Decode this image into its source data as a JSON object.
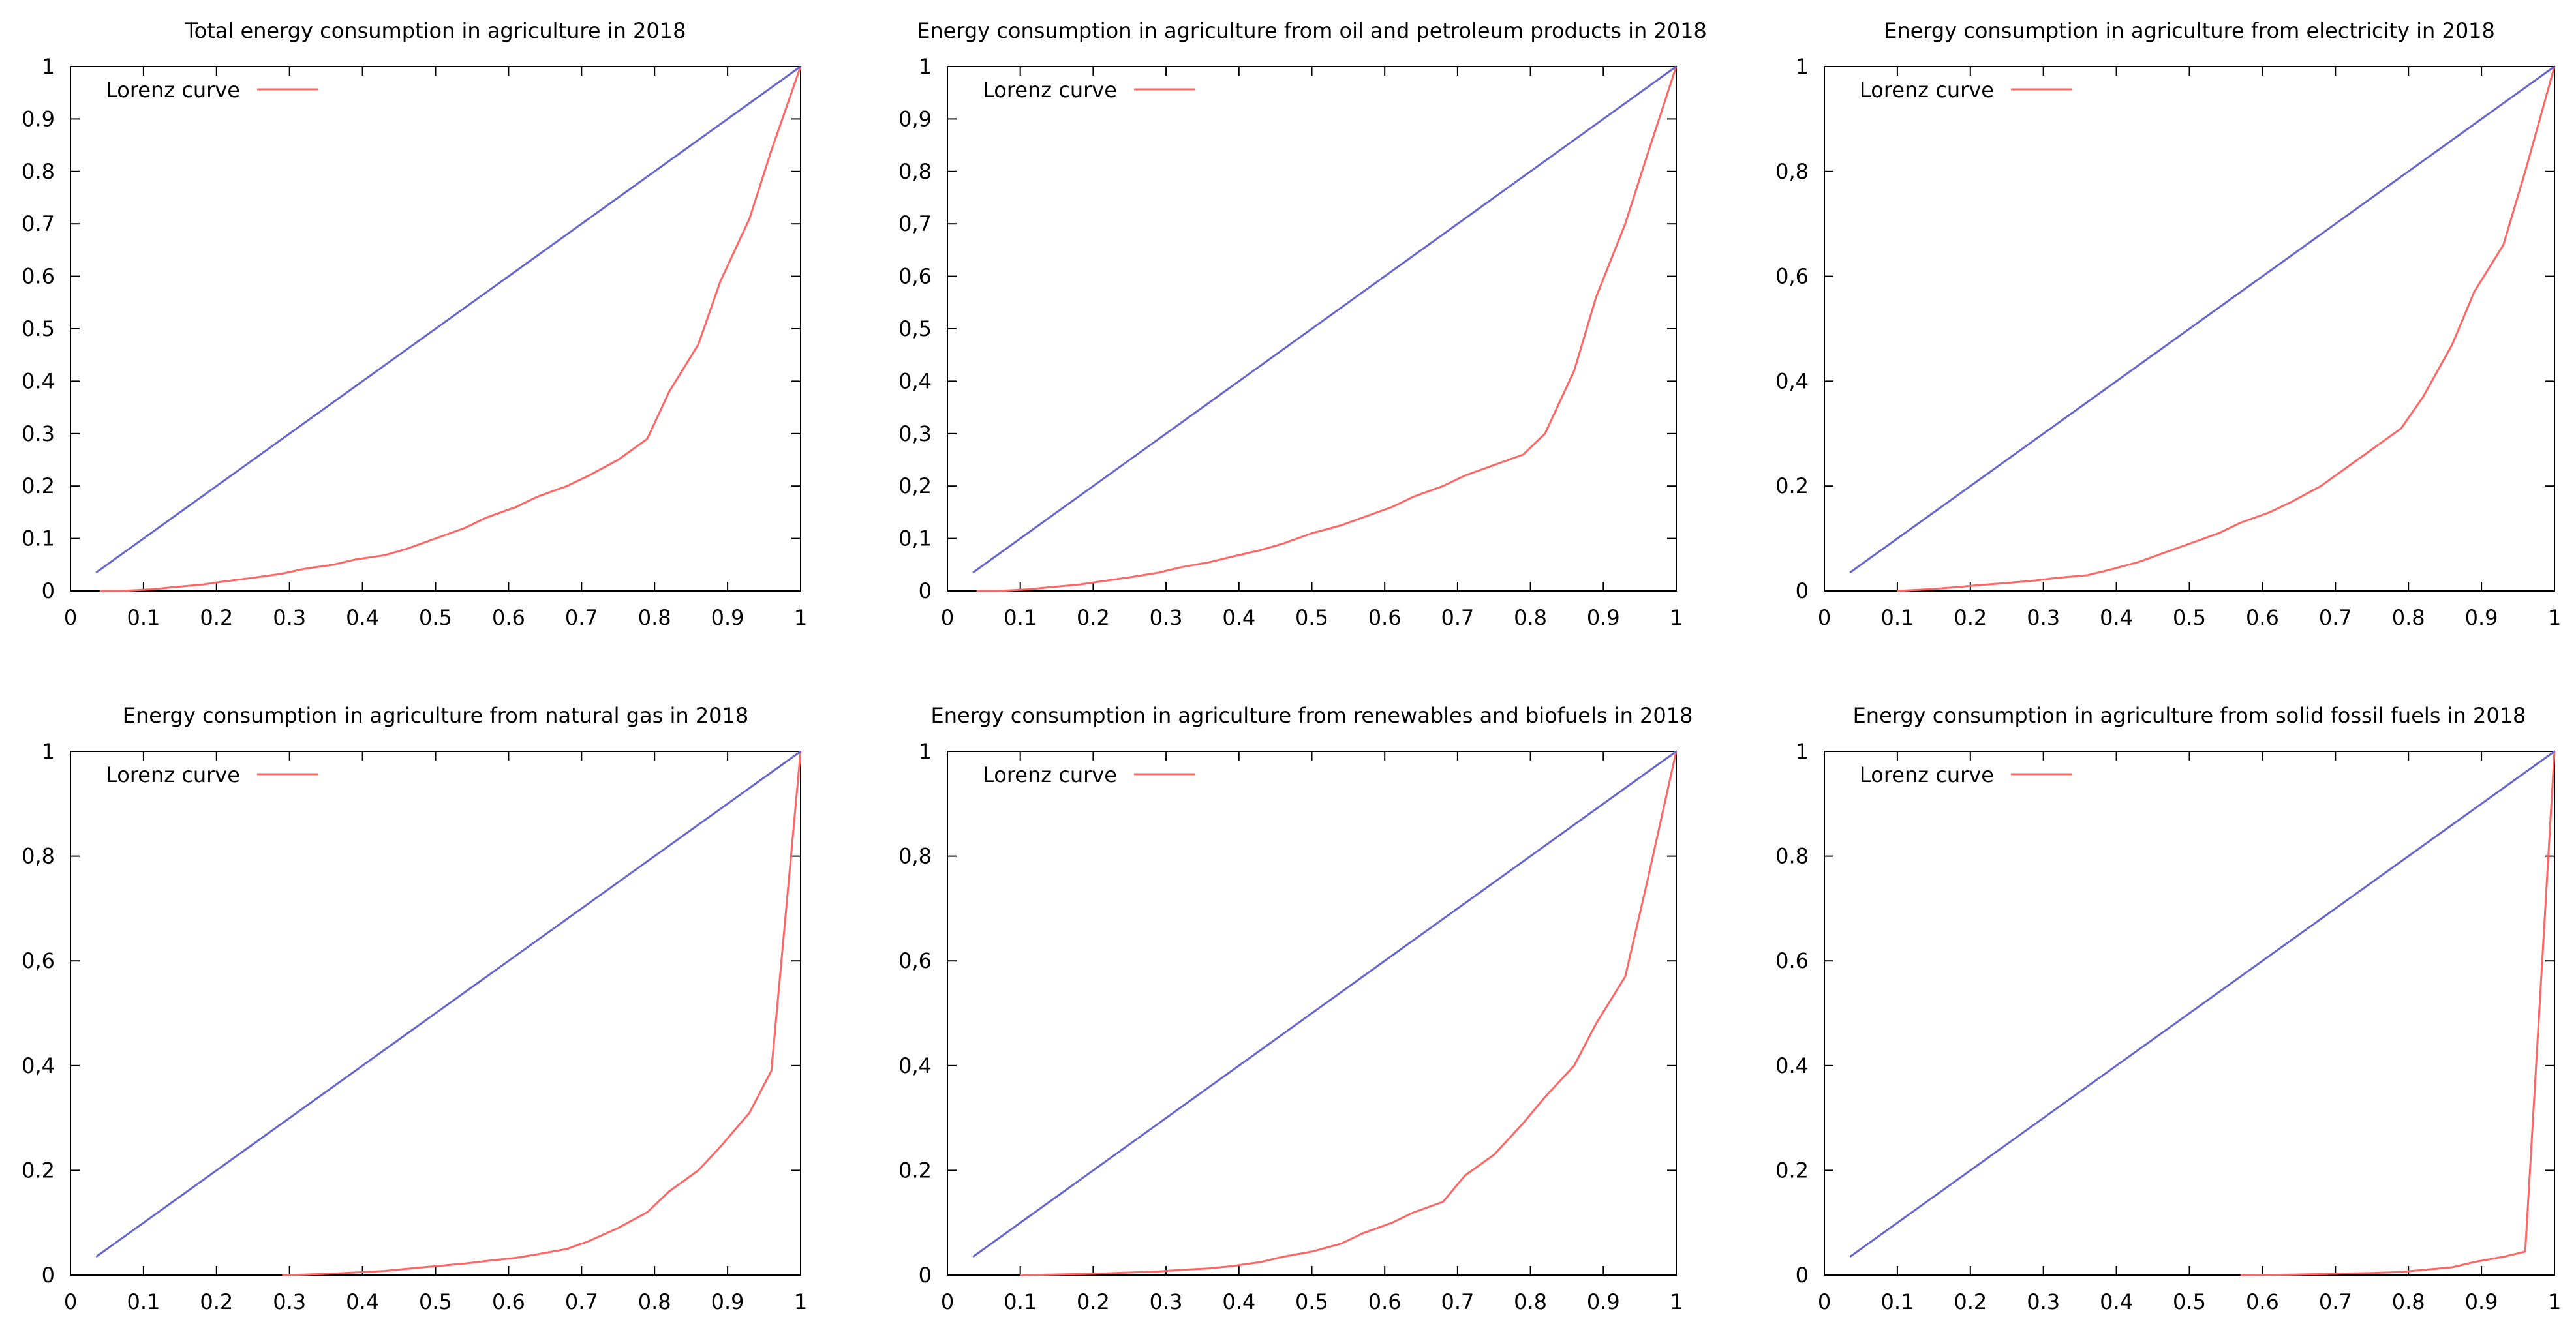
{
  "colors": {
    "lorenz": "#ff6666",
    "equality": "#6666cc",
    "axis": "#000000"
  },
  "chart_data": [
    {
      "type": "line",
      "title": "Total energy consumption in agriculture in 2018",
      "xlim": [
        0,
        1
      ],
      "ylim": [
        0,
        1
      ],
      "xticks": [
        "0",
        "0.1",
        "0.2",
        "0.3",
        "0.4",
        "0.5",
        "0.6",
        "0.7",
        "0.8",
        "0.9",
        "1"
      ],
      "yticks": [
        "0",
        "0.1",
        "0.2",
        "0.3",
        "0.4",
        "0.5",
        "0.6",
        "0.7",
        "0.8",
        "0.9",
        "1"
      ],
      "ytick_values": [
        0,
        0.1,
        0.2,
        0.3,
        0.4,
        0.5,
        0.6,
        0.7,
        0.8,
        0.9,
        1
      ],
      "legend": "Lorenz curve",
      "series": [
        {
          "name": "Lorenz curve",
          "x": [
            0.04,
            0.07,
            0.11,
            0.14,
            0.18,
            0.21,
            0.25,
            0.29,
            0.32,
            0.36,
            0.39,
            0.43,
            0.46,
            0.5,
            0.54,
            0.57,
            0.61,
            0.64,
            0.68,
            0.71,
            0.75,
            0.79,
            0.82,
            0.86,
            0.89,
            0.93,
            0.96,
            1.0
          ],
          "y": [
            0.0,
            0.0,
            0.003,
            0.007,
            0.012,
            0.018,
            0.025,
            0.033,
            0.042,
            0.05,
            0.06,
            0.068,
            0.08,
            0.1,
            0.12,
            0.14,
            0.16,
            0.18,
            0.2,
            0.22,
            0.25,
            0.29,
            0.38,
            0.47,
            0.59,
            0.71,
            0.84,
            1.0
          ]
        },
        {
          "name": "Equality line",
          "x": [
            0.035,
            1.0
          ],
          "y": [
            0.035,
            1.0
          ]
        }
      ]
    },
    {
      "type": "line",
      "title": "Energy consumption in agriculture from oil and petroleum products in 2018",
      "xlim": [
        0,
        1
      ],
      "ylim": [
        0,
        1
      ],
      "xticks": [
        "0",
        "0.1",
        "0.2",
        "0.3",
        "0.4",
        "0.5",
        "0.6",
        "0.7",
        "0.8",
        "0.9",
        "1"
      ],
      "yticks": [
        "0",
        "0,1",
        "0,2",
        "0,3",
        "0,4",
        "0,5",
        "0,6",
        "0,7",
        "0,8",
        "0,9",
        "1"
      ],
      "ytick_values": [
        0,
        0.1,
        0.2,
        0.3,
        0.4,
        0.5,
        0.6,
        0.7,
        0.8,
        0.9,
        1
      ],
      "legend": "Lorenz curve",
      "series": [
        {
          "name": "Lorenz curve",
          "x": [
            0.04,
            0.07,
            0.11,
            0.14,
            0.18,
            0.21,
            0.25,
            0.29,
            0.32,
            0.36,
            0.39,
            0.43,
            0.46,
            0.5,
            0.54,
            0.57,
            0.61,
            0.64,
            0.68,
            0.71,
            0.75,
            0.79,
            0.82,
            0.86,
            0.89,
            0.93,
            0.96,
            1.0
          ],
          "y": [
            0.0,
            0.0,
            0.003,
            0.007,
            0.012,
            0.018,
            0.026,
            0.035,
            0.045,
            0.055,
            0.065,
            0.078,
            0.09,
            0.11,
            0.125,
            0.14,
            0.16,
            0.18,
            0.2,
            0.22,
            0.24,
            0.26,
            0.3,
            0.42,
            0.56,
            0.7,
            0.83,
            1.0
          ]
        },
        {
          "name": "Equality line",
          "x": [
            0.035,
            1.0
          ],
          "y": [
            0.035,
            1.0
          ]
        }
      ]
    },
    {
      "type": "line",
      "title": "Energy consumption in agriculture from electricity in 2018",
      "xlim": [
        0,
        1
      ],
      "ylim": [
        0,
        1
      ],
      "xticks": [
        "0",
        "0.1",
        "0.2",
        "0.3",
        "0.4",
        "0.5",
        "0.6",
        "0.7",
        "0.8",
        "0.9",
        "1"
      ],
      "yticks": [
        "0",
        "0.2",
        "0,4",
        "0,6",
        "0,8",
        "1"
      ],
      "ytick_values": [
        0,
        0.2,
        0.4,
        0.6,
        0.8,
        1
      ],
      "legend": "Lorenz curve",
      "series": [
        {
          "name": "Lorenz curve",
          "x": [
            0.1,
            0.14,
            0.18,
            0.21,
            0.25,
            0.29,
            0.32,
            0.36,
            0.39,
            0.43,
            0.46,
            0.5,
            0.54,
            0.57,
            0.61,
            0.64,
            0.68,
            0.71,
            0.75,
            0.79,
            0.82,
            0.86,
            0.89,
            0.93,
            0.96,
            1.0
          ],
          "y": [
            0.0,
            0.003,
            0.007,
            0.011,
            0.015,
            0.02,
            0.025,
            0.03,
            0.04,
            0.055,
            0.07,
            0.09,
            0.11,
            0.13,
            0.15,
            0.17,
            0.2,
            0.23,
            0.27,
            0.31,
            0.37,
            0.47,
            0.57,
            0.66,
            0.8,
            1.0
          ]
        },
        {
          "name": "Equality line",
          "x": [
            0.035,
            1.0
          ],
          "y": [
            0.035,
            1.0
          ]
        }
      ]
    },
    {
      "type": "line",
      "title": "Energy consumption in agriculture from natural gas in 2018",
      "xlim": [
        0,
        1
      ],
      "ylim": [
        0,
        1
      ],
      "xticks": [
        "0",
        "0.1",
        "0.2",
        "0.3",
        "0.4",
        "0.5",
        "0.6",
        "0.7",
        "0.8",
        "0.9",
        "1"
      ],
      "yticks": [
        "0",
        "0.2",
        "0,4",
        "0,6",
        "0,8",
        "1"
      ],
      "ytick_values": [
        0,
        0.2,
        0.4,
        0.6,
        0.8,
        1
      ],
      "legend": "Lorenz curve",
      "series": [
        {
          "name": "Lorenz curve",
          "x": [
            0.29,
            0.32,
            0.36,
            0.39,
            0.43,
            0.46,
            0.5,
            0.54,
            0.57,
            0.61,
            0.64,
            0.68,
            0.71,
            0.75,
            0.79,
            0.82,
            0.86,
            0.89,
            0.93,
            0.96,
            1.0
          ],
          "y": [
            0.0,
            0.001,
            0.003,
            0.005,
            0.008,
            0.012,
            0.017,
            0.022,
            0.027,
            0.033,
            0.04,
            0.05,
            0.065,
            0.09,
            0.12,
            0.16,
            0.2,
            0.245,
            0.31,
            0.39,
            1.0
          ]
        },
        {
          "name": "Equality line",
          "x": [
            0.035,
            1.0
          ],
          "y": [
            0.035,
            1.0
          ]
        }
      ]
    },
    {
      "type": "line",
      "title": "Energy consumption in agriculture from renewables and biofuels in 2018",
      "xlim": [
        0,
        1
      ],
      "ylim": [
        0,
        1
      ],
      "xticks": [
        "0",
        "0.1",
        "0.2",
        "0.3",
        "0.4",
        "0.5",
        "0.6",
        "0.7",
        "0.8",
        "0.9",
        "1"
      ],
      "yticks": [
        "0",
        "0.2",
        "0,4",
        "0,6",
        "0,8",
        "1"
      ],
      "ytick_values": [
        0,
        0.2,
        0.4,
        0.6,
        0.8,
        1
      ],
      "legend": "Lorenz curve",
      "series": [
        {
          "name": "Lorenz curve",
          "x": [
            0.1,
            0.14,
            0.18,
            0.21,
            0.25,
            0.29,
            0.32,
            0.36,
            0.39,
            0.43,
            0.46,
            0.5,
            0.54,
            0.57,
            0.61,
            0.64,
            0.68,
            0.71,
            0.75,
            0.79,
            0.82,
            0.86,
            0.89,
            0.93,
            0.96,
            1.0
          ],
          "y": [
            0.0,
            0.001,
            0.002,
            0.003,
            0.005,
            0.007,
            0.01,
            0.013,
            0.017,
            0.025,
            0.035,
            0.045,
            0.06,
            0.08,
            0.1,
            0.12,
            0.14,
            0.19,
            0.23,
            0.29,
            0.34,
            0.4,
            0.48,
            0.57,
            0.75,
            1.0
          ]
        },
        {
          "name": "Equality line",
          "x": [
            0.035,
            1.0
          ],
          "y": [
            0.035,
            1.0
          ]
        }
      ]
    },
    {
      "type": "line",
      "title": "Energy consumption in agriculture from solid fossil fuels in 2018",
      "xlim": [
        0,
        1
      ],
      "ylim": [
        0,
        1
      ],
      "xticks": [
        "0",
        "0.1",
        "0.2",
        "0.3",
        "0.4",
        "0.5",
        "0.6",
        "0.7",
        "0.8",
        "0.9",
        "1"
      ],
      "yticks": [
        "0",
        "0.2",
        "0.4",
        "0.6",
        "0.8",
        "1"
      ],
      "ytick_values": [
        0,
        0.2,
        0.4,
        0.6,
        0.8,
        1
      ],
      "legend": "Lorenz curve",
      "series": [
        {
          "name": "Lorenz curve",
          "x": [
            0.57,
            0.61,
            0.64,
            0.68,
            0.71,
            0.75,
            0.79,
            0.82,
            0.86,
            0.89,
            0.93,
            0.96,
            1.0
          ],
          "y": [
            0.0,
            0.0005,
            0.001,
            0.002,
            0.003,
            0.004,
            0.006,
            0.01,
            0.015,
            0.025,
            0.035,
            0.045,
            1.0
          ]
        },
        {
          "name": "Equality line",
          "x": [
            0.035,
            1.0
          ],
          "y": [
            0.035,
            1.0
          ]
        }
      ]
    }
  ]
}
